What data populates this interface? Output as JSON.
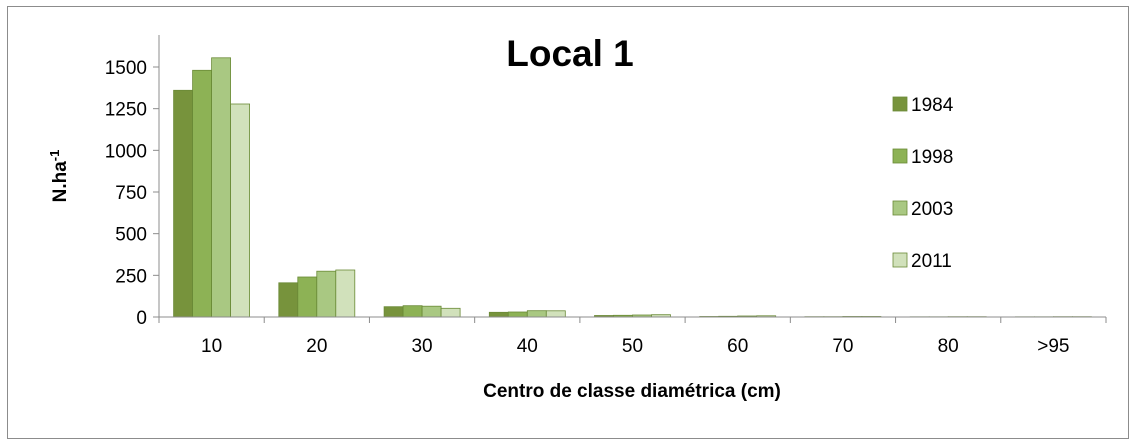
{
  "chart_data": {
    "type": "bar",
    "title": "Local 1",
    "xlabel": "Centro de classe diamétrica (cm)",
    "ylabel_main": "N.ha",
    "ylabel_sup": "-1",
    "categories": [
      "10",
      "20",
      "30",
      "40",
      "50",
      "60",
      "70",
      "80",
      ">95"
    ],
    "ylim": [
      0,
      1500
    ],
    "yticks": [
      "0",
      "250",
      "500",
      "750",
      "1000",
      "1250",
      "1500"
    ],
    "series": [
      {
        "name": "1984",
        "color": "#77933c",
        "values": [
          1360,
          205,
          62,
          28,
          9,
          3,
          2,
          1,
          1
        ]
      },
      {
        "name": "1998",
        "color": "#8db255",
        "values": [
          1480,
          240,
          68,
          30,
          10,
          4,
          2,
          1,
          1
        ]
      },
      {
        "name": "2003",
        "color": "#a9c882",
        "values": [
          1555,
          275,
          65,
          38,
          12,
          6,
          3,
          2,
          2
        ]
      },
      {
        "name": "2011",
        "color": "#d1e1bb",
        "values": [
          1278,
          282,
          52,
          37,
          14,
          7,
          3,
          2,
          2
        ]
      }
    ],
    "legend_position": "right",
    "grid": false
  }
}
